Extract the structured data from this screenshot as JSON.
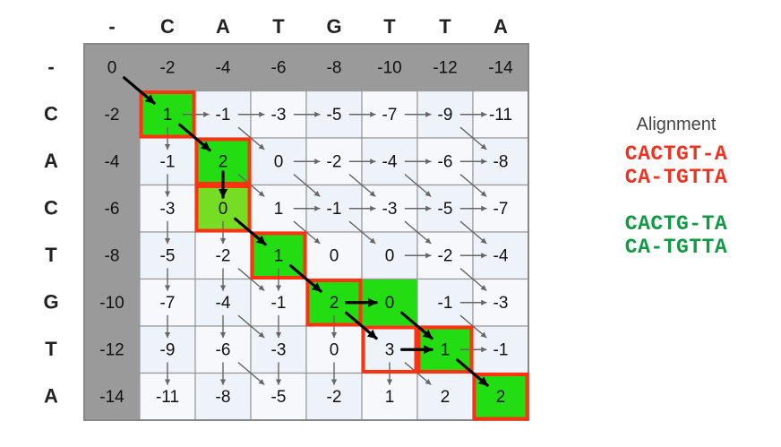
{
  "columns": [
    "-",
    "C",
    "A",
    "T",
    "G",
    "T",
    "T",
    "A"
  ],
  "rows": [
    "-",
    "C",
    "A",
    "C",
    "T",
    "G",
    "T",
    "A"
  ],
  "matrix": [
    [
      "0",
      "-2",
      "-4",
      "-6",
      "-8",
      "-10",
      "-12",
      "-14"
    ],
    [
      "-2",
      "1",
      "-1",
      "-3",
      "-5",
      "-7",
      "-9",
      "-11"
    ],
    [
      "-4",
      "-1",
      "2",
      "0",
      "-2",
      "-4",
      "-6",
      "-8"
    ],
    [
      "-6",
      "-3",
      "0",
      "1",
      "-1",
      "-3",
      "-5",
      "-7"
    ],
    [
      "-8",
      "-5",
      "-2",
      "1",
      "0",
      "0",
      "-2",
      "-4"
    ],
    [
      "-10",
      "-7",
      "-4",
      "-1",
      "2",
      "0",
      "-1",
      "-3"
    ],
    [
      "-12",
      "-9",
      "-6",
      "-3",
      "0",
      "3",
      "1",
      "-1"
    ],
    [
      "-14",
      "-11",
      "-8",
      "-5",
      "-2",
      "1",
      "2",
      "2"
    ]
  ],
  "green_cells": [
    [
      1,
      1
    ],
    [
      2,
      2
    ],
    [
      3,
      2
    ],
    [
      4,
      3
    ],
    [
      5,
      4
    ],
    [
      5,
      5
    ],
    [
      6,
      6
    ],
    [
      7,
      7
    ]
  ],
  "lime_cells": [
    [
      3,
      2
    ]
  ],
  "red_path_cells": [
    [
      1,
      1
    ],
    [
      2,
      2
    ],
    [
      3,
      2
    ],
    [
      4,
      3
    ],
    [
      5,
      4
    ],
    [
      6,
      5
    ],
    [
      6,
      6
    ],
    [
      7,
      7
    ]
  ],
  "black_arrows": [
    [
      [
        0,
        0
      ],
      [
        1,
        1
      ]
    ],
    [
      [
        1,
        1
      ],
      [
        2,
        2
      ]
    ],
    [
      [
        2,
        2
      ],
      [
        3,
        2
      ]
    ],
    [
      [
        3,
        2
      ],
      [
        4,
        3
      ]
    ],
    [
      [
        4,
        3
      ],
      [
        5,
        4
      ]
    ],
    [
      [
        5,
        4
      ],
      [
        5,
        5
      ]
    ],
    [
      [
        5,
        4
      ],
      [
        6,
        5
      ]
    ],
    [
      [
        6,
        5
      ],
      [
        6,
        6
      ]
    ],
    [
      [
        5,
        5
      ],
      [
        6,
        6
      ]
    ],
    [
      [
        6,
        6
      ],
      [
        7,
        7
      ]
    ]
  ],
  "gray_arrows": [
    [
      [
        1,
        1
      ],
      [
        1,
        2
      ]
    ],
    [
      [
        1,
        2
      ],
      [
        1,
        3
      ]
    ],
    [
      [
        1,
        3
      ],
      [
        1,
        4
      ]
    ],
    [
      [
        1,
        4
      ],
      [
        1,
        5
      ]
    ],
    [
      [
        1,
        5
      ],
      [
        1,
        6
      ]
    ],
    [
      [
        1,
        6
      ],
      [
        1,
        7
      ]
    ],
    [
      [
        1,
        6
      ],
      [
        2,
        7
      ]
    ],
    [
      [
        1,
        1
      ],
      [
        2,
        1
      ]
    ],
    [
      [
        2,
        3
      ],
      [
        2,
        4
      ]
    ],
    [
      [
        2,
        4
      ],
      [
        2,
        5
      ]
    ],
    [
      [
        2,
        5
      ],
      [
        2,
        6
      ]
    ],
    [
      [
        2,
        6
      ],
      [
        2,
        7
      ]
    ],
    [
      [
        2,
        1
      ],
      [
        3,
        1
      ]
    ],
    [
      [
        2,
        2
      ],
      [
        3,
        3
      ]
    ],
    [
      [
        1,
        2
      ],
      [
        2,
        3
      ]
    ],
    [
      [
        3,
        3
      ],
      [
        3,
        4
      ]
    ],
    [
      [
        3,
        4
      ],
      [
        3,
        5
      ]
    ],
    [
      [
        3,
        5
      ],
      [
        3,
        6
      ]
    ],
    [
      [
        3,
        6
      ],
      [
        3,
        7
      ]
    ],
    [
      [
        2,
        3
      ],
      [
        3,
        4
      ]
    ],
    [
      [
        2,
        5
      ],
      [
        3,
        6
      ]
    ],
    [
      [
        2,
        6
      ],
      [
        3,
        7
      ]
    ],
    [
      [
        2,
        4
      ],
      [
        3,
        5
      ]
    ],
    [
      [
        3,
        1
      ],
      [
        4,
        1
      ]
    ],
    [
      [
        3,
        2
      ],
      [
        4,
        2
      ]
    ],
    [
      [
        3,
        3
      ],
      [
        4,
        4
      ]
    ],
    [
      [
        3,
        4
      ],
      [
        4,
        5
      ]
    ],
    [
      [
        3,
        5
      ],
      [
        4,
        6
      ]
    ],
    [
      [
        3,
        6
      ],
      [
        4,
        7
      ]
    ],
    [
      [
        4,
        5
      ],
      [
        4,
        6
      ]
    ],
    [
      [
        4,
        6
      ],
      [
        4,
        7
      ]
    ],
    [
      [
        4,
        1
      ],
      [
        5,
        1
      ]
    ],
    [
      [
        4,
        2
      ],
      [
        5,
        2
      ]
    ],
    [
      [
        4,
        2
      ],
      [
        5,
        3
      ]
    ],
    [
      [
        4,
        3
      ],
      [
        5,
        3
      ]
    ],
    [
      [
        4,
        6
      ],
      [
        5,
        7
      ]
    ],
    [
      [
        5,
        6
      ],
      [
        5,
        7
      ]
    ],
    [
      [
        5,
        1
      ],
      [
        6,
        1
      ]
    ],
    [
      [
        5,
        2
      ],
      [
        6,
        2
      ]
    ],
    [
      [
        5,
        2
      ],
      [
        6,
        3
      ]
    ],
    [
      [
        5,
        3
      ],
      [
        6,
        3
      ]
    ],
    [
      [
        5,
        4
      ],
      [
        6,
        4
      ]
    ],
    [
      [
        5,
        6
      ],
      [
        6,
        7
      ]
    ],
    [
      [
        6,
        6
      ],
      [
        6,
        7
      ]
    ],
    [
      [
        6,
        1
      ],
      [
        7,
        1
      ]
    ],
    [
      [
        6,
        2
      ],
      [
        7,
        2
      ]
    ],
    [
      [
        6,
        2
      ],
      [
        7,
        3
      ]
    ],
    [
      [
        6,
        3
      ],
      [
        7,
        3
      ]
    ],
    [
      [
        6,
        4
      ],
      [
        7,
        4
      ]
    ],
    [
      [
        6,
        5
      ],
      [
        7,
        5
      ]
    ],
    [
      [
        6,
        5
      ],
      [
        7,
        6
      ]
    ]
  ],
  "alignment": {
    "title": "Alignment",
    "red_line1": "CACTGT-A",
    "red_line2": "CA-TGTTA",
    "green_line1": "CACTG-TA",
    "green_line2": "CA-TGTTA"
  },
  "colors": {
    "gray": "#9a9a9a",
    "light": "#eef2f9",
    "lighter": "#f6f8fc",
    "green": "#22dd11",
    "lime": "#77dd22",
    "red": "#ff3311",
    "arrow_gray": "#666666",
    "arrow_black": "#000000"
  }
}
